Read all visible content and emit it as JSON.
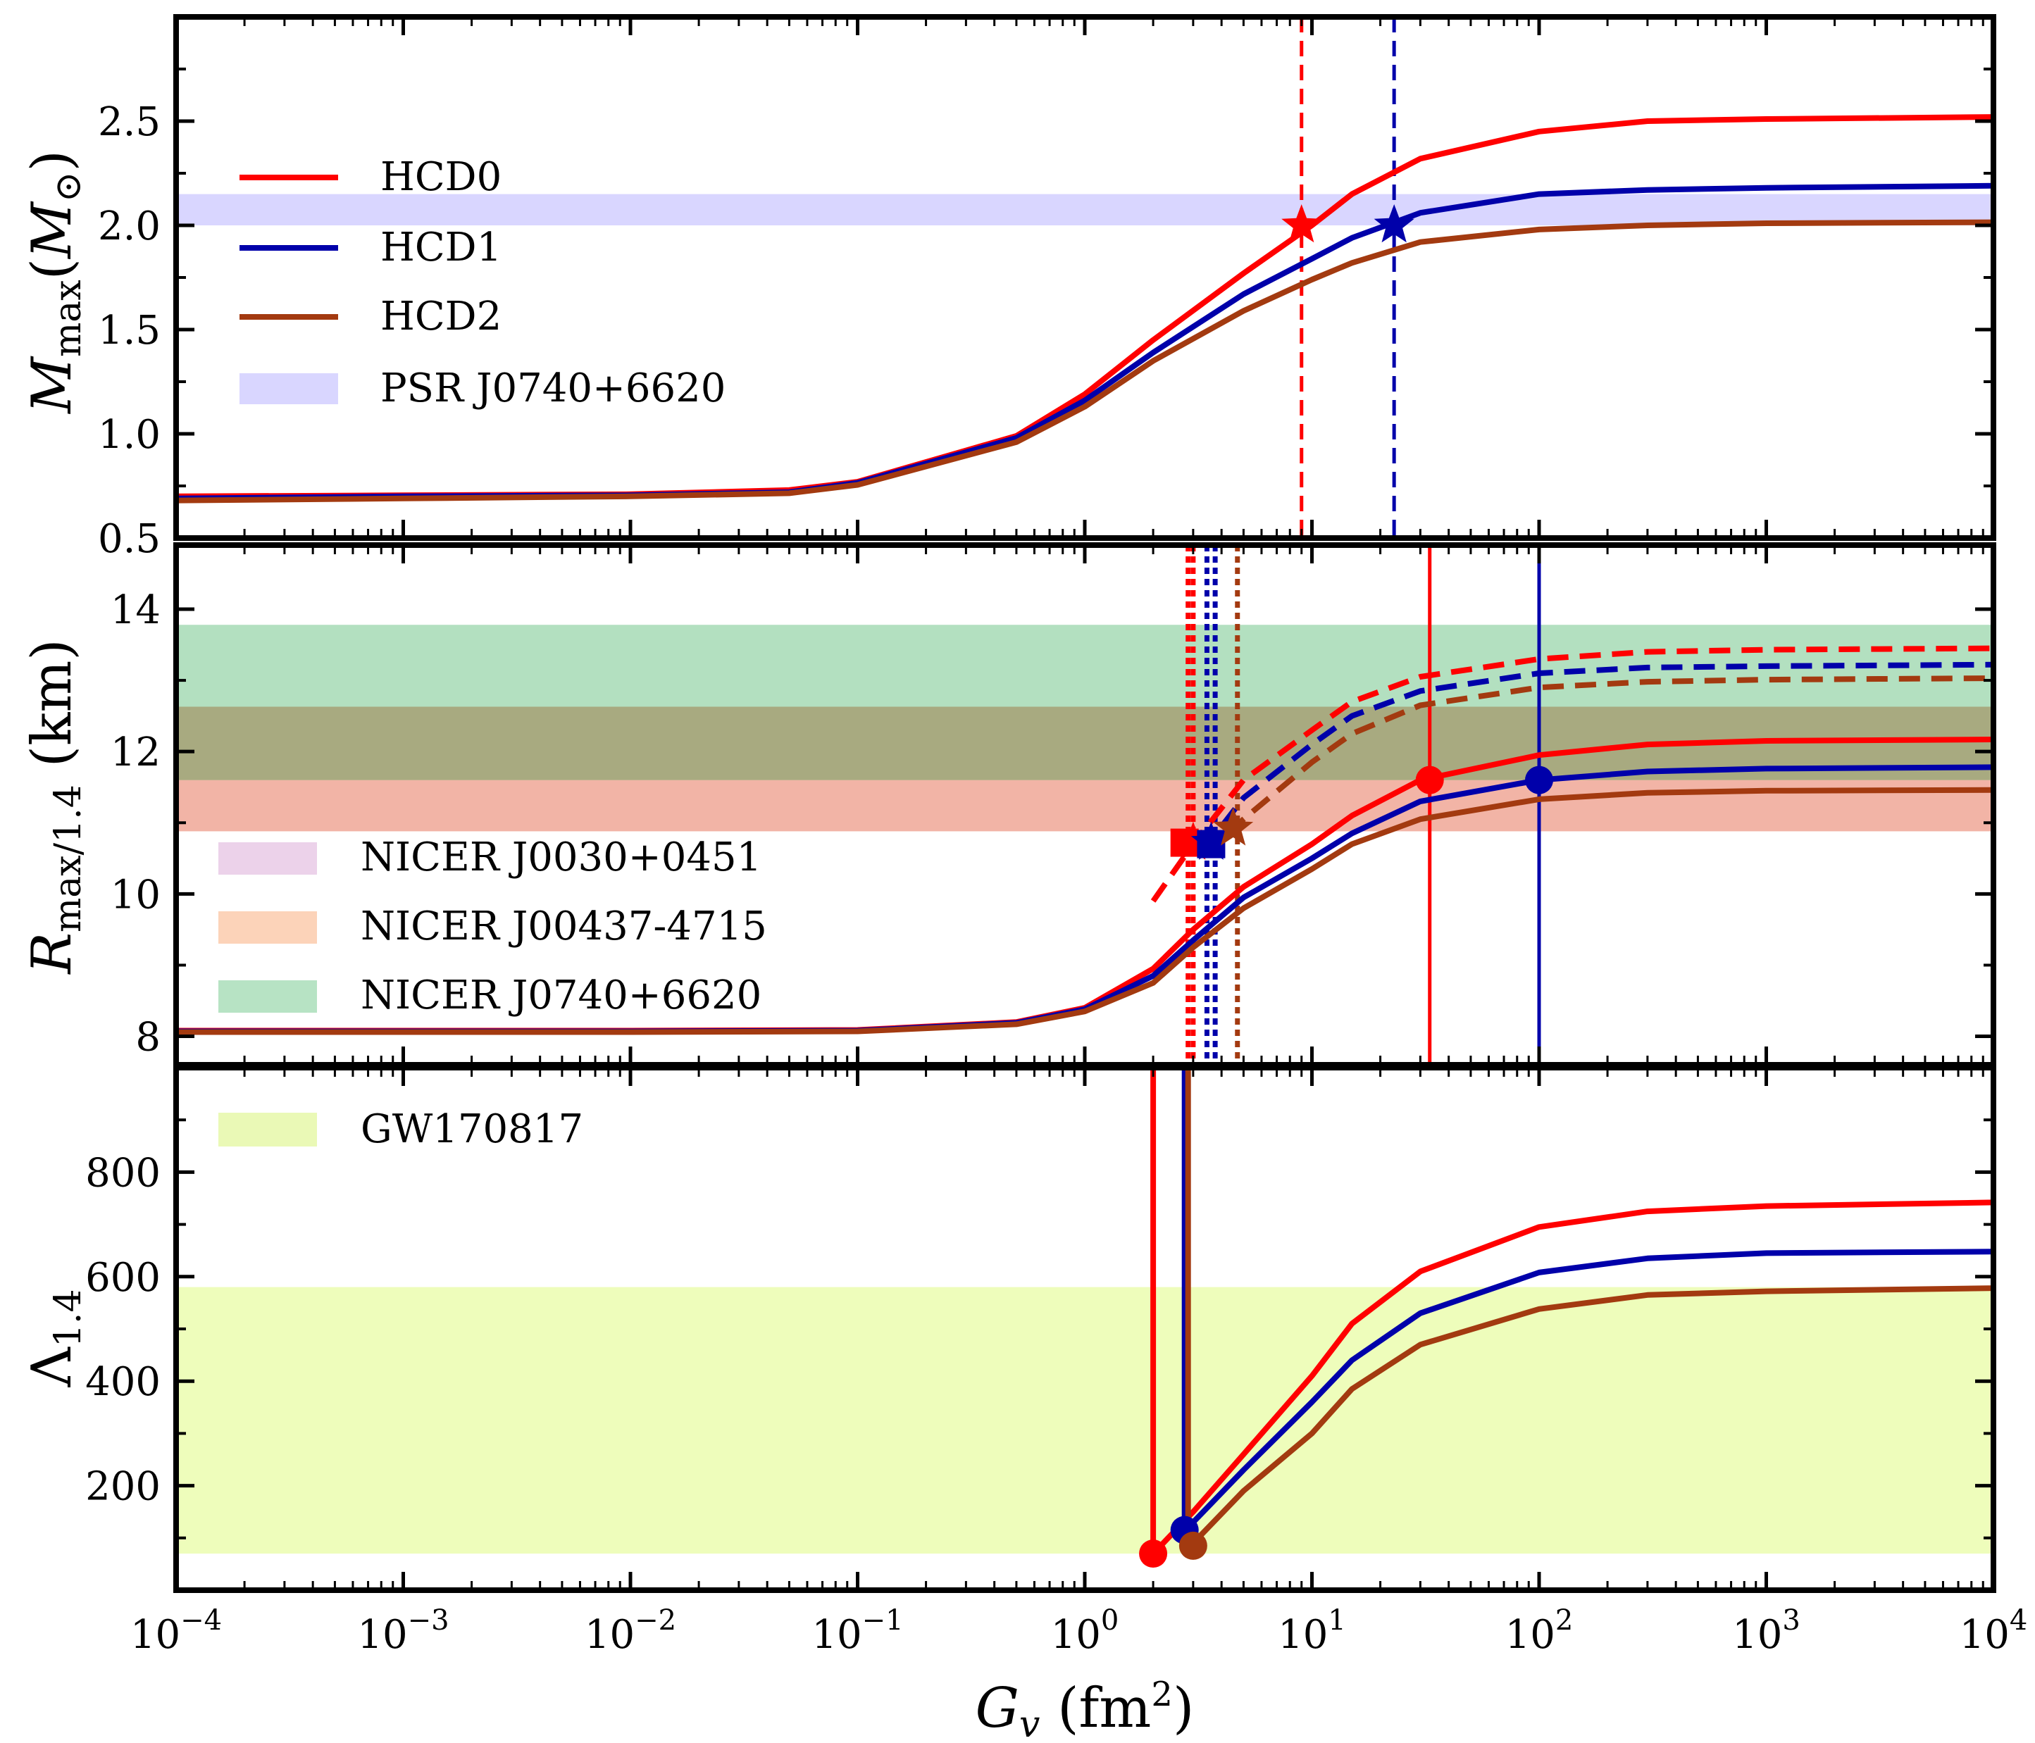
{
  "chart_data": {
    "type": "line",
    "x": {
      "label": "G_v (fm^2)",
      "scale": "log",
      "lim": [
        0.0001,
        10000
      ],
      "ticks": [
        {
          "base": "10",
          "exp": "−4"
        },
        {
          "base": "10",
          "exp": "−3"
        },
        {
          "base": "10",
          "exp": "−2"
        },
        {
          "base": "10",
          "exp": "−1"
        },
        {
          "base": "10",
          "exp": "0"
        },
        {
          "base": "10",
          "exp": "1"
        },
        {
          "base": "10",
          "exp": "2"
        },
        {
          "base": "10",
          "exp": "3"
        },
        {
          "base": "10",
          "exp": "4"
        }
      ]
    },
    "colors": {
      "HCD0": "#ff0000",
      "HCD1": "#0000aa",
      "HCD2": "#a33a10"
    },
    "grid": false,
    "panels": [
      {
        "ylabel": "M_max (M_⊙)",
        "ylim": [
          0.5,
          3.0
        ],
        "yticks": [
          "0.5",
          "1.0",
          "1.5",
          "2.0",
          "2.5"
        ],
        "bands": [
          {
            "name": "PSR J0740+6620",
            "range": [
              2.0,
              2.15
            ],
            "color": "#d9d6ff"
          }
        ],
        "legend": [
          {
            "label": "HCD0",
            "kind": "line",
            "color": "#ff0000"
          },
          {
            "label": "HCD1",
            "kind": "line",
            "color": "#0000aa"
          },
          {
            "label": "HCD2",
            "kind": "line",
            "color": "#a33a10"
          },
          {
            "label": "PSR J0740+6620",
            "kind": "patch",
            "color": "#d9d6ff"
          }
        ],
        "series": [
          {
            "name": "HCD0",
            "x": [
              0.0001,
              0.001,
              0.01,
              0.05,
              0.1,
              0.5,
              1,
              2,
              5,
              10,
              15,
              30,
              100,
              300,
              1000,
              10000
            ],
            "y": [
              0.7,
              0.705,
              0.71,
              0.73,
              0.77,
              0.99,
              1.19,
              1.45,
              1.77,
              2.0,
              2.15,
              2.32,
              2.45,
              2.5,
              2.51,
              2.52
            ]
          },
          {
            "name": "HCD1",
            "x": [
              0.0001,
              0.001,
              0.01,
              0.05,
              0.1,
              0.5,
              1,
              2,
              5,
              10,
              15,
              30,
              100,
              300,
              1000,
              10000
            ],
            "y": [
              0.69,
              0.7,
              0.705,
              0.72,
              0.765,
              0.98,
              1.16,
              1.39,
              1.67,
              1.84,
              1.94,
              2.06,
              2.15,
              2.17,
              2.18,
              2.19
            ]
          },
          {
            "name": "HCD2",
            "x": [
              0.0001,
              0.001,
              0.01,
              0.05,
              0.1,
              0.5,
              1,
              2,
              5,
              10,
              15,
              30,
              100,
              300,
              1000,
              10000
            ],
            "y": [
              0.68,
              0.69,
              0.7,
              0.715,
              0.755,
              0.96,
              1.13,
              1.35,
              1.59,
              1.74,
              1.82,
              1.92,
              1.98,
              2.0,
              2.01,
              2.015
            ]
          }
        ],
        "vlines": [
          {
            "series": "HCD0",
            "x": 9.0,
            "style": "dashed"
          },
          {
            "series": "HCD1",
            "x": 23.0,
            "style": "dashed"
          }
        ],
        "markers": [
          {
            "series": "HCD0",
            "shape": "star",
            "x": 9.0,
            "y": 2.0
          },
          {
            "series": "HCD1",
            "shape": "star",
            "x": 23.0,
            "y": 2.0
          }
        ]
      },
      {
        "ylabel": "R_max/1.4 (km)",
        "ylim": [
          7.6,
          14.9
        ],
        "yticks": [
          "8",
          "10",
          "12",
          "14"
        ],
        "yticks_values": [
          8,
          10,
          12,
          14
        ],
        "bands": [
          {
            "name": "NICER J00437-4715",
            "range": [
              10.88,
              12.63
            ],
            "color": "#f2b4a6"
          },
          {
            "name": "NICER J0740+6620",
            "range": [
              11.6,
              13.78
            ],
            "color": "#b3e0c0"
          }
        ],
        "overlap_color": "#a8aa80",
        "legend": [
          {
            "label": "NICER J0030+0451",
            "kind": "patch",
            "color": "#ecd2ea"
          },
          {
            "label": "NICER J00437-4715",
            "kind": "patch",
            "color": "#fcd3b9"
          },
          {
            "label": "NICER J0740+6620",
            "kind": "patch",
            "color": "#b7e3c4"
          }
        ],
        "series": [
          {
            "name": "HCD0",
            "style": "solid",
            "x": [
              0.0001,
              0.001,
              0.01,
              0.1,
              0.5,
              1,
              2,
              3,
              5,
              10,
              15,
              30,
              100,
              300,
              1000,
              10000
            ],
            "y": [
              8.08,
              8.08,
              8.08,
              8.09,
              8.2,
              8.4,
              8.95,
              9.5,
              10.1,
              10.7,
              11.1,
              11.6,
              11.95,
              12.1,
              12.15,
              12.17
            ]
          },
          {
            "name": "HCD1",
            "style": "solid",
            "x": [
              0.0001,
              0.001,
              0.01,
              0.1,
              0.5,
              1,
              2,
              3,
              5,
              10,
              15,
              30,
              100,
              300,
              1000,
              10000
            ],
            "y": [
              8.07,
              8.07,
              8.07,
              8.08,
              8.19,
              8.38,
              8.85,
              9.35,
              9.95,
              10.5,
              10.85,
              11.3,
              11.6,
              11.72,
              11.76,
              11.78
            ]
          },
          {
            "name": "HCD2",
            "style": "solid",
            "x": [
              0.0001,
              0.001,
              0.01,
              0.1,
              0.5,
              1,
              2,
              3,
              5,
              10,
              15,
              30,
              100,
              300,
              1000,
              10000
            ],
            "y": [
              8.06,
              8.06,
              8.06,
              8.07,
              8.17,
              8.35,
              8.75,
              9.25,
              9.8,
              10.35,
              10.7,
              11.05,
              11.33,
              11.42,
              11.45,
              11.46
            ]
          },
          {
            "name": "HCD0",
            "style": "dashed",
            "x": [
              2.0,
              3.0,
              5.0,
              10,
              15,
              30,
              100,
              300,
              1000,
              10000
            ],
            "y": [
              9.9,
              10.7,
              11.6,
              12.3,
              12.7,
              13.05,
              13.3,
              13.4,
              13.43,
              13.45
            ]
          },
          {
            "name": "HCD1",
            "style": "dashed",
            "x": [
              3.3,
              5.0,
              10,
              15,
              30,
              100,
              300,
              1000,
              10000
            ],
            "y": [
              10.6,
              11.35,
              12.1,
              12.5,
              12.85,
              13.1,
              13.18,
              13.2,
              13.22
            ]
          },
          {
            "name": "HCD2",
            "style": "dashed",
            "x": [
              4.3,
              5.0,
              10,
              15,
              30,
              100,
              300,
              1000,
              10000
            ],
            "y": [
              10.85,
              11.05,
              11.85,
              12.25,
              12.65,
              12.9,
              12.98,
              13.01,
              13.03
            ]
          }
        ],
        "vlines": [
          {
            "series": "HCD0",
            "x": 2.85,
            "style": "dotted"
          },
          {
            "series": "HCD0",
            "x": 3.0,
            "style": "dotted"
          },
          {
            "series": "HCD1",
            "x": 3.45,
            "style": "dotted"
          },
          {
            "series": "HCD1",
            "x": 3.75,
            "style": "dotted"
          },
          {
            "series": "HCD2",
            "x": 4.7,
            "style": "dotted"
          },
          {
            "series": "HCD0",
            "x": 33.0,
            "style": "solid"
          },
          {
            "series": "HCD1",
            "x": 100.0,
            "style": "solid"
          }
        ],
        "markers": [
          {
            "series": "HCD0",
            "shape": "circle",
            "x": 33.0,
            "y": 11.6
          },
          {
            "series": "HCD1",
            "shape": "circle",
            "x": 100.0,
            "y": 11.6
          },
          {
            "series": "HCD0",
            "shape": "square",
            "x": 2.75,
            "y": 10.72
          },
          {
            "series": "HCD0",
            "shape": "star",
            "x": 3.0,
            "y": 10.72
          },
          {
            "series": "HCD1",
            "shape": "square",
            "x": 3.6,
            "y": 10.7
          },
          {
            "series": "HCD1",
            "shape": "star",
            "x": 3.6,
            "y": 10.72
          },
          {
            "series": "HCD2",
            "shape": "star",
            "x": 4.5,
            "y": 10.92
          }
        ]
      },
      {
        "ylabel": "Λ_1.4",
        "ylim": [
          0,
          1000
        ],
        "yticks": [
          "200",
          "400",
          "600",
          "800"
        ],
        "yticks_values": [
          200,
          400,
          600,
          800
        ],
        "bands": [
          {
            "name": "GW170817",
            "range": [
              70,
              580
            ],
            "color": "#eefdbb"
          }
        ],
        "legend": [
          {
            "label": "GW170817",
            "kind": "patch",
            "color": "#eaf9b6"
          }
        ],
        "series": [
          {
            "name": "HCD0",
            "x": [
              2.0,
              2.0,
              3.0,
              5,
              10,
              15,
              30,
              100,
              300,
              1000,
              10000
            ],
            "y": [
              1000,
              70,
              150,
              260,
              410,
              510,
              610,
              695,
              725,
              735,
              742
            ]
          },
          {
            "name": "HCD1",
            "x": [
              2.75,
              2.75,
              3.0,
              5,
              10,
              15,
              30,
              100,
              300,
              1000,
              10000
            ],
            "y": [
              1000,
              115,
              130,
              230,
              360,
              440,
              530,
              608,
              635,
              645,
              648
            ]
          },
          {
            "name": "HCD2",
            "x": [
              2.85,
              2.85,
              3.0,
              5,
              10,
              15,
              30,
              100,
              300,
              1000,
              10000
            ],
            "y": [
              1000,
              85,
              90,
              190,
              300,
              385,
              470,
              538,
              565,
              572,
              578
            ]
          }
        ],
        "markers": [
          {
            "series": "HCD0",
            "shape": "circle",
            "x": 2.0,
            "y": 70
          },
          {
            "series": "HCD1",
            "shape": "circle",
            "x": 2.75,
            "y": 115
          },
          {
            "series": "HCD2",
            "shape": "circle",
            "x": 3.0,
            "y": 85
          }
        ]
      }
    ]
  }
}
